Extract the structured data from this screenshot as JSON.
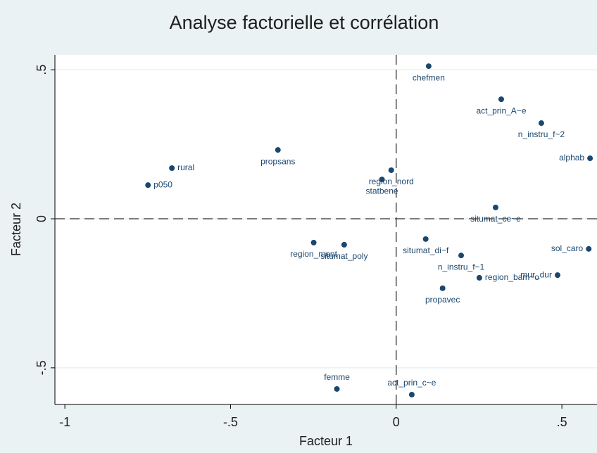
{
  "chart_data": {
    "type": "scatter",
    "title": "Analyse factorielle et corrélation",
    "x_label": "Facteur 1",
    "y_label": "Facteur 2",
    "color": "#1a476f",
    "grid": true,
    "xline": 0,
    "yline": 0,
    "xlim": [
      -1.03,
      0.606
    ],
    "ylim": [
      -0.623,
      0.55
    ],
    "xticks": [
      -1,
      {
        "value": -0.5,
        "label": "-.5"
      },
      0,
      {
        "value": 0.5,
        "label": ".5"
      }
    ],
    "yticks": [
      {
        "value": -0.5,
        "label": "-.5"
      },
      0,
      {
        "value": 0.5,
        "label": ".5"
      }
    ],
    "labels": [
      "chefmen",
      "act_prin_A~e",
      "n_instru_f~2",
      "alphab",
      "rural",
      "propsans",
      "p050",
      "region_nord",
      "statbene",
      "situmat_ce~e",
      "region_mont",
      "situmat_poly",
      "situmat_di~f",
      "n_instru_f~1",
      "sol_caro",
      "mur_dur",
      "region_bam~o",
      "propavec",
      "femme",
      "act_prin_c~e"
    ],
    "x": [
      0.098,
      0.317,
      0.438,
      0.585,
      -0.677,
      -0.357,
      -0.749,
      -0.015,
      -0.043,
      0.3,
      -0.249,
      -0.157,
      0.089,
      0.196,
      0.581,
      0.487,
      0.251,
      0.14,
      -0.179,
      0.047
    ],
    "values": [
      0.512,
      0.401,
      0.321,
      0.203,
      0.17,
      0.231,
      0.113,
      0.163,
      0.132,
      0.038,
      -0.08,
      -0.087,
      -0.068,
      -0.123,
      -0.101,
      -0.189,
      -0.198,
      -0.233,
      -0.571,
      -0.59
    ]
  }
}
